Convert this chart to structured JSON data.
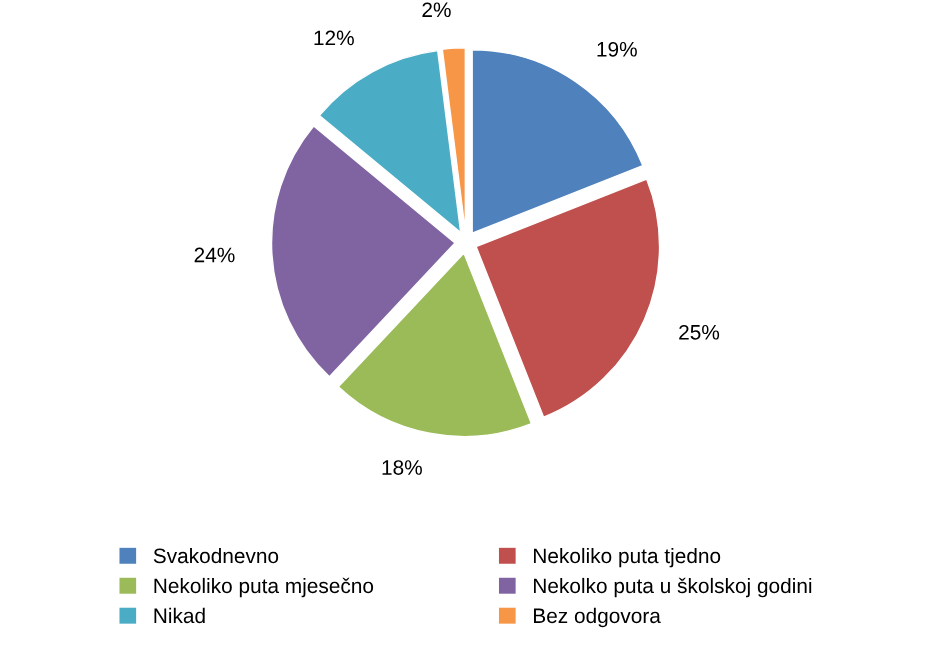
{
  "chart_data": {
    "type": "pie",
    "categories": [
      "Svakodnevno",
      "Nekoliko puta tjedno",
      "Nekoliko puta mjesečno",
      "Nekolko puta u školskoj godini",
      "Nikad",
      "Bez odgovora"
    ],
    "values": [
      19,
      25,
      18,
      24,
      12,
      2
    ],
    "value_labels": [
      "19%",
      "25%",
      "18%",
      "24%",
      "12%",
      "2%"
    ],
    "colors": [
      "#4f81bd",
      "#c0504d",
      "#9bbb59",
      "#8064a2",
      "#4bacc6",
      "#f79646"
    ],
    "legend": "bottom"
  }
}
